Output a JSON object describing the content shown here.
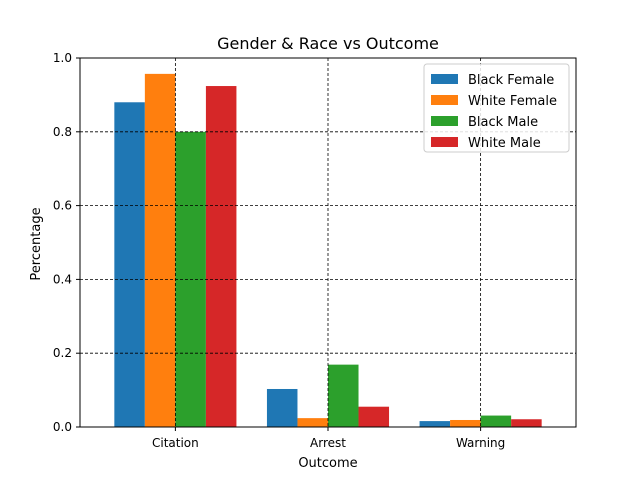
{
  "chart_data": {
    "type": "bar",
    "title": "Gender & Race vs Outcome",
    "xlabel": "Outcome",
    "ylabel": "Percentage",
    "categories": [
      "Citation",
      "Arrest",
      "Warning"
    ],
    "ylim": [
      0,
      1.0
    ],
    "yticks": [
      0.0,
      0.2,
      0.4,
      0.6,
      0.8,
      1.0
    ],
    "ytick_labels": [
      "0.0",
      "0.2",
      "0.4",
      "0.6",
      "0.8",
      "1.0"
    ],
    "grid": true,
    "legend_position": "top-right",
    "series": [
      {
        "name": "Black Female",
        "color": "#1f77b4",
        "values": [
          0.88,
          0.103,
          0.016
        ]
      },
      {
        "name": "White Female",
        "color": "#ff7f0e",
        "values": [
          0.957,
          0.024,
          0.019
        ]
      },
      {
        "name": "Black Male",
        "color": "#2ca02c",
        "values": [
          0.8,
          0.169,
          0.031
        ]
      },
      {
        "name": "White Male",
        "color": "#d62728",
        "values": [
          0.924,
          0.055,
          0.021
        ]
      }
    ]
  }
}
